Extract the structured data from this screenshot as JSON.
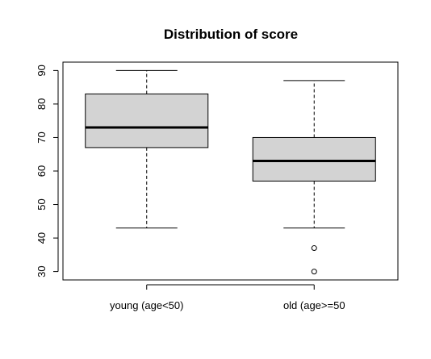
{
  "chart_data": {
    "type": "boxplot",
    "title": "Distribution of score",
    "xlabel": "",
    "ylabel": "",
    "ylim": [
      27.5,
      92.5
    ],
    "yticks": [
      30,
      40,
      50,
      60,
      70,
      80,
      90
    ],
    "categories": [
      "young (age<50)",
      "old (age>=50"
    ],
    "boxes": [
      {
        "category": "young (age<50)",
        "whisker_low": 43,
        "q1": 67,
        "median": 73,
        "q3": 83,
        "whisker_high": 90,
        "outliers": []
      },
      {
        "category": "old (age>=50",
        "whisker_low": 43,
        "q1": 57,
        "median": 63,
        "q3": 70,
        "whisker_high": 87,
        "outliers": [
          37,
          30
        ]
      }
    ],
    "colors": {
      "box_fill": "#d3d3d3",
      "stroke": "#000000"
    }
  }
}
